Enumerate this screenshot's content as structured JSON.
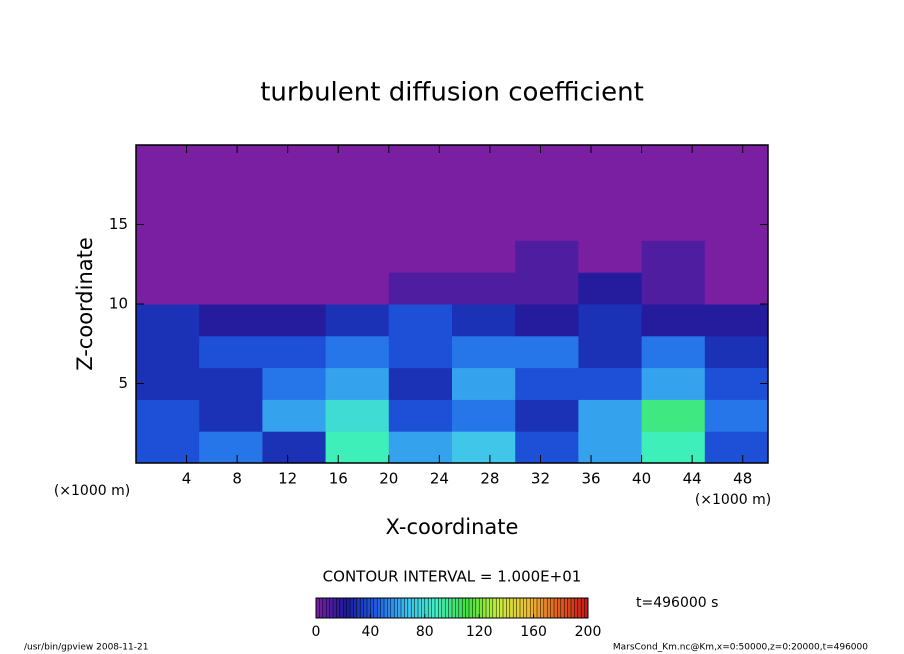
{
  "chart_data": {
    "type": "heatmap",
    "title": "turbulent diffusion coefficient",
    "x_label": "X-coordinate",
    "y_label": "Z-coordinate",
    "x_unit": "(×1000 m)",
    "xlim": [
      0,
      50
    ],
    "xticks": [
      4,
      8,
      12,
      16,
      20,
      24,
      28,
      32,
      36,
      40,
      44,
      48
    ],
    "ylim": [
      0,
      20
    ],
    "yticks": [
      5,
      10,
      15
    ],
    "x": [
      2.5,
      7.5,
      12.5,
      17.5,
      22.5,
      27.5,
      32.5,
      37.5,
      42.5,
      47.5
    ],
    "y": [
      1,
      3,
      5,
      7,
      9,
      11,
      13,
      15,
      17,
      19
    ],
    "values": [
      [
        40,
        50,
        30,
        90,
        60,
        70,
        40,
        60,
        90,
        40
      ],
      [
        40,
        30,
        60,
        80,
        40,
        50,
        30,
        60,
        100,
        50
      ],
      [
        30,
        30,
        50,
        60,
        30,
        60,
        40,
        40,
        60,
        40
      ],
      [
        30,
        40,
        40,
        50,
        40,
        50,
        50,
        30,
        50,
        30
      ],
      [
        30,
        20,
        20,
        30,
        40,
        30,
        20,
        30,
        20,
        20
      ],
      [
        0,
        0,
        0,
        0,
        10,
        10,
        10,
        20,
        10,
        0
      ],
      [
        0,
        0,
        0,
        0,
        0,
        0,
        10,
        0,
        10,
        0
      ],
      [
        0,
        0,
        0,
        0,
        0,
        0,
        0,
        0,
        0,
        0
      ],
      [
        0,
        0,
        0,
        0,
        0,
        0,
        0,
        0,
        0,
        0
      ],
      [
        0,
        0,
        0,
        0,
        0,
        0,
        0,
        0,
        0,
        0
      ]
    ],
    "clim": [
      0,
      200
    ],
    "cticks": [
      0,
      40,
      80,
      120,
      160,
      200
    ],
    "colormap": [
      "#7b1fa2",
      "#1a1a9c",
      "#1f5ee6",
      "#3fbff0",
      "#3ff0c0",
      "#3fe040",
      "#c8f03c",
      "#f0c030",
      "#e06020",
      "#c81818"
    ],
    "contour_note": "CONTOUR INTERVAL = 1.000E+01",
    "time_label": "t=496000 s",
    "footer_left": "/usr/bin/gpview  2008-11-21",
    "footer_right": "MarsCond_Km.nc@Km,x=0:50000,z=0:20000,t=496000"
  }
}
